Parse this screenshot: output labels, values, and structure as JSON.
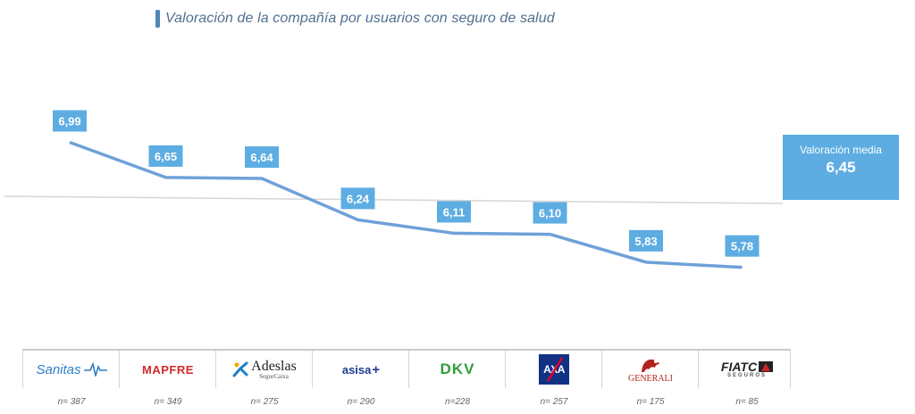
{
  "chart_data": {
    "type": "line",
    "title": "Valoración de la compañía por usuarios con seguro de salud",
    "categories": [
      "Sanitas",
      "MAPFRE",
      "Adeslas SegurCaixa",
      "asisa",
      "DKV",
      "AXA",
      "GENERALI",
      "FIATC SEGUROS"
    ],
    "values": [
      6.99,
      6.65,
      6.64,
      6.24,
      6.11,
      6.1,
      5.83,
      5.78
    ],
    "value_labels": [
      "6,99",
      "6,65",
      "6,64",
      "6,24",
      "6,11",
      "6,10",
      "5,83",
      "5,78"
    ],
    "sample_sizes": [
      "n= 387",
      "n= 349",
      "n= 275",
      "n= 290",
      "n=228",
      "n= 257",
      "n= 175",
      "n= 85"
    ],
    "reference_line": {
      "label": "Valoración media",
      "value": 6.45,
      "value_label": "6,45"
    },
    "ylim": [
      5.0,
      7.4
    ],
    "colors": {
      "line": "#6fa1d8",
      "label_bg": "#5dade2",
      "reference": "#d5d5d5",
      "title": "#4f6f90"
    }
  },
  "logos": {
    "sanitas": "Sanitas",
    "mapfre": "MAPFRE",
    "adeslas": "Adeslas",
    "adeslas_sub": "SegurCaixa",
    "asisa": "asisa",
    "asisa_plus": "+",
    "dkv": "DKV",
    "axa": "AXA",
    "generali": "GENERALI",
    "fiatc": "FIATC",
    "fiatc_sub": "SEGUROS"
  }
}
